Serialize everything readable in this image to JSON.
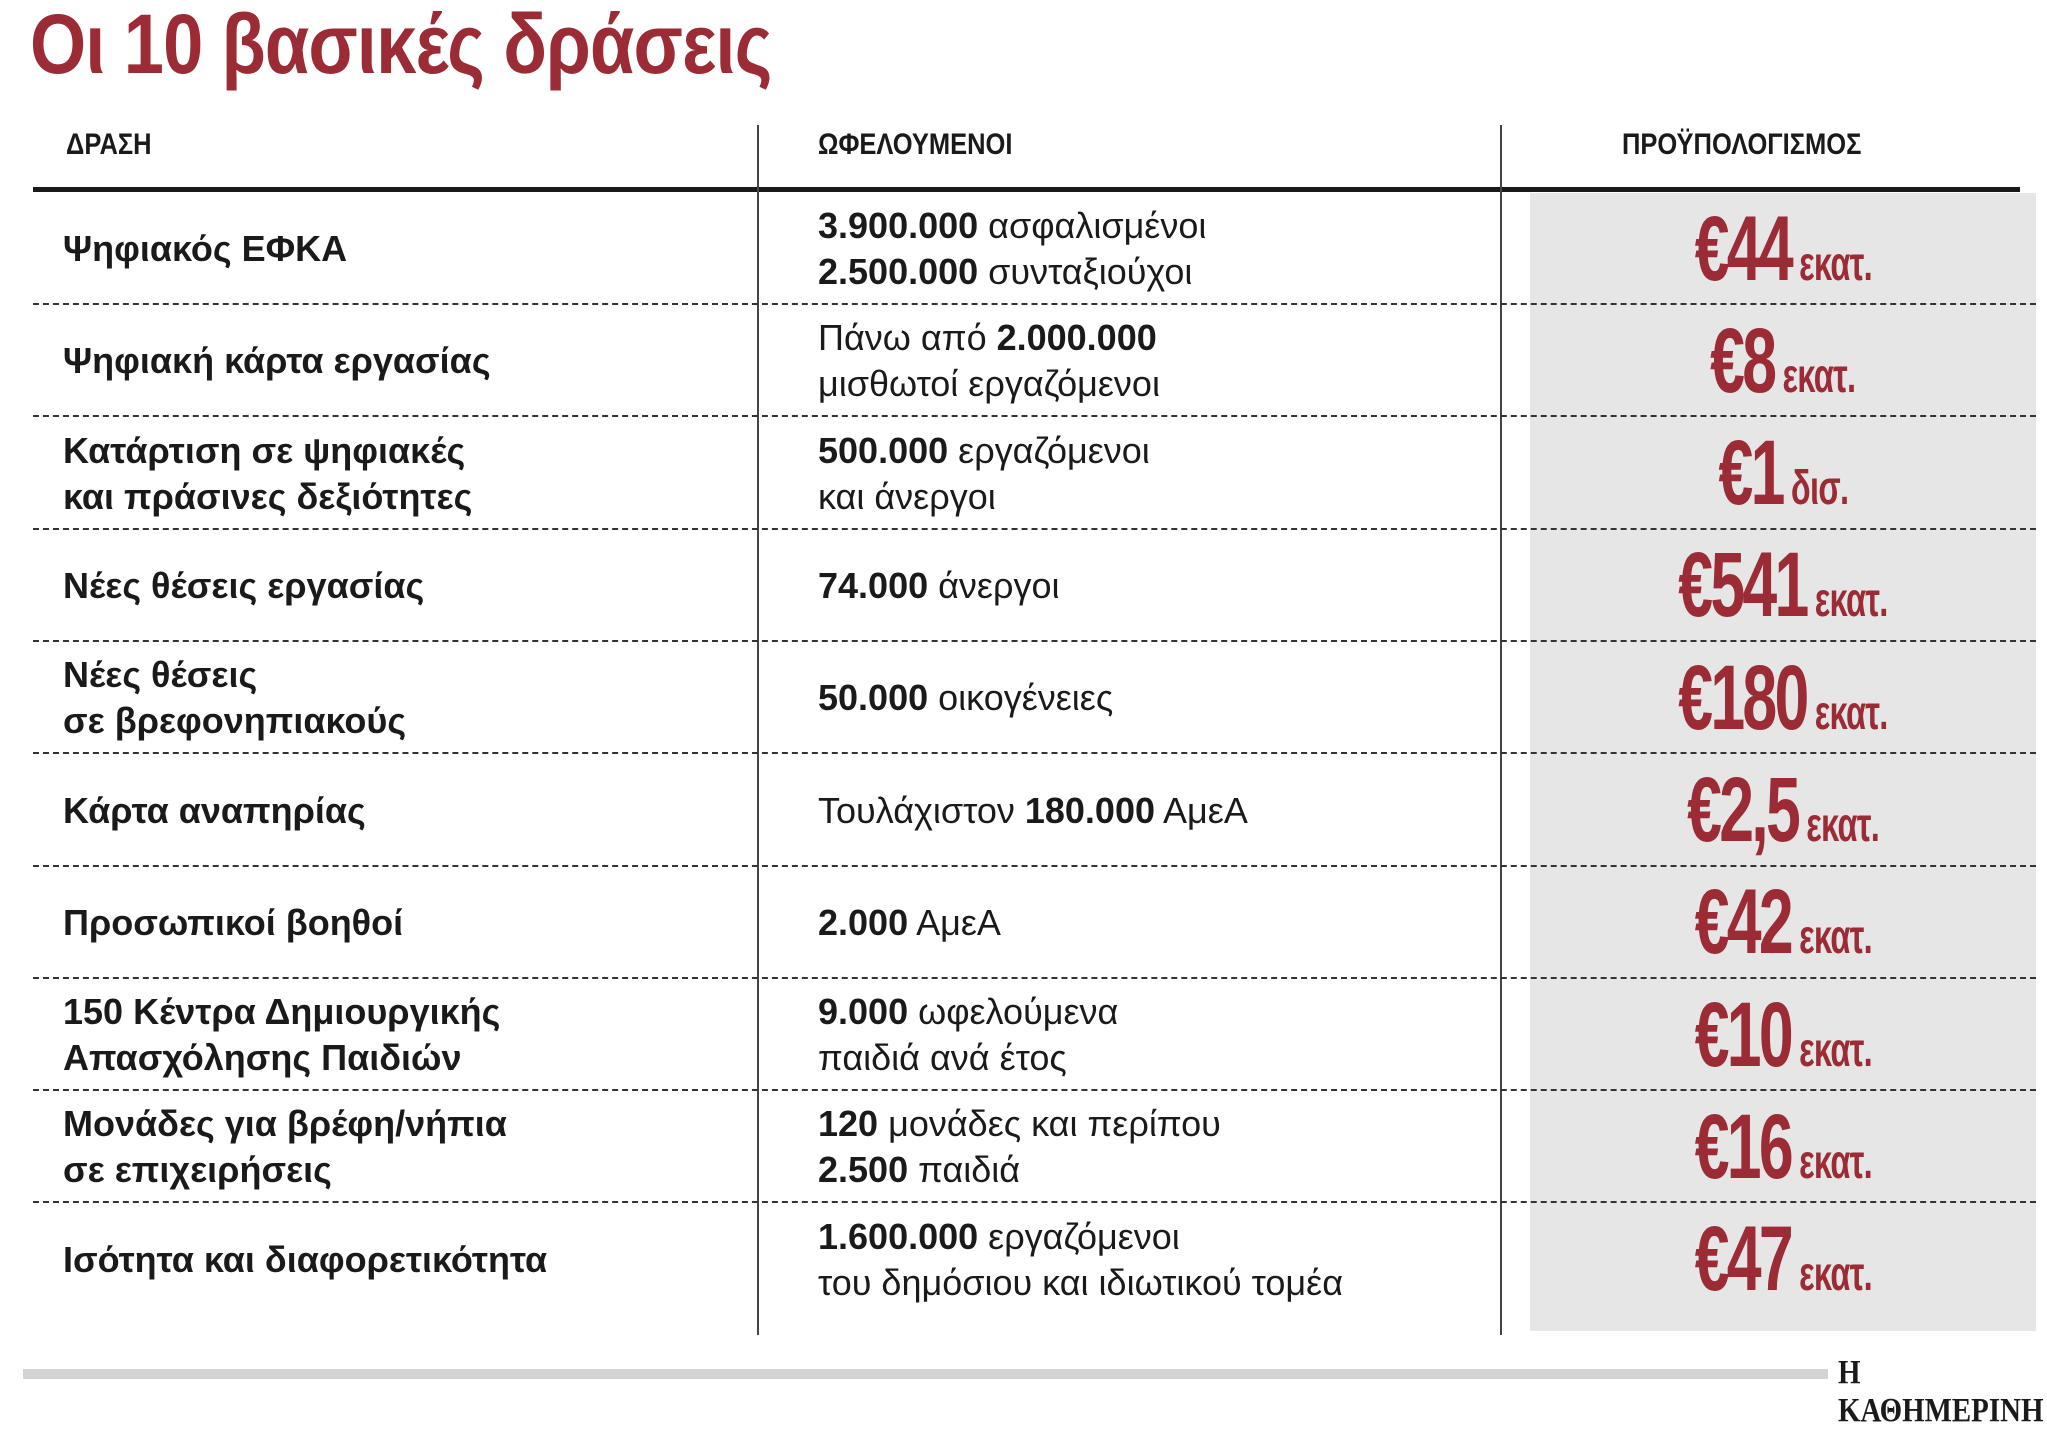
{
  "title": "Οι 10 βασικές δράσεις",
  "headers": {
    "action": "ΔΡΑΣΗ",
    "beneficiaries": "ΩΦΕΛΟΥΜΕΝΟΙ",
    "budget": "ΠΡΟΫΠΟΛΟΓΙΣΜΟΣ"
  },
  "rows": [
    {
      "action": "Ψηφιακός ΕΦΚΑ",
      "ben": [
        {
          "b": "3.900.000",
          "t": " ασφαλισμένοι"
        },
        {
          "b": "2.500.000",
          "t": " συνταξιούχοι"
        }
      ],
      "amount": "€44",
      "unit": "εκατ."
    },
    {
      "action": "Ψηφιακή κάρτα εργασίας",
      "ben": [
        {
          "pre": "Πάνω από ",
          "b": "2.000.000",
          "t": ""
        },
        {
          "b": "",
          "t": "μισθωτοί εργαζόμενοι"
        }
      ],
      "amount": "€8",
      "unit": "εκατ."
    },
    {
      "action": "Κατάρτιση σε ψηφιακές\nκαι πράσινες δεξιότητες",
      "ben": [
        {
          "b": "500.000",
          "t": " εργαζόμενοι"
        },
        {
          "b": "",
          "t": "και άνεργοι"
        }
      ],
      "amount": "€1",
      "unit": "δισ."
    },
    {
      "action": "Νέες θέσεις εργασίας",
      "ben": [
        {
          "b": "74.000",
          "t": " άνεργοι"
        }
      ],
      "amount": "€541",
      "unit": "εκατ."
    },
    {
      "action": "Νέες θέσεις\nσε βρεφονηπιακούς",
      "ben": [
        {
          "b": "50.000",
          "t": " οικογένειες"
        }
      ],
      "amount": "€180",
      "unit": "εκατ."
    },
    {
      "action": "Κάρτα αναπηρίας",
      "ben": [
        {
          "pre": "Τουλάχιστον ",
          "b": "180.000",
          "t": " ΑμεΑ"
        }
      ],
      "amount": "€2,5",
      "unit": "εκατ."
    },
    {
      "action": "Προσωπικοί βοηθοί",
      "ben": [
        {
          "b": "2.000",
          "t": " ΑμεΑ"
        }
      ],
      "amount": "€42",
      "unit": "εκατ."
    },
    {
      "action": "150 Κέντρα Δημιουργικής\nΑπασχόλησης Παιδιών",
      "ben": [
        {
          "b": "9.000",
          "t": " ωφελούμενα"
        },
        {
          "b": "",
          "t": "παιδιά ανά έτος"
        }
      ],
      "amount": "€10",
      "unit": "εκατ."
    },
    {
      "action": "Μονάδες για βρέφη/νήπια\nσε επιχειρήσεις",
      "ben": [
        {
          "b": "120",
          "t": " μονάδες και περίπου"
        },
        {
          "b": "2.500",
          "t": " παιδιά"
        }
      ],
      "amount": "€16",
      "unit": "εκατ."
    },
    {
      "action": "Ισότητα και διαφορετικότητα",
      "ben": [
        {
          "b": "1.600.000",
          "t": " εργαζόμενοι"
        },
        {
          "b": "",
          "t": "του δημόσιου και ιδιωτικού τομέα"
        }
      ],
      "amount": "€47",
      "unit": "εκατ."
    }
  ],
  "logo": "Η ΚΑΘΗΜΕΡΙΝΗ",
  "colors": {
    "accent": "#9b2b35",
    "budget_bg": "#e6e6e7"
  }
}
